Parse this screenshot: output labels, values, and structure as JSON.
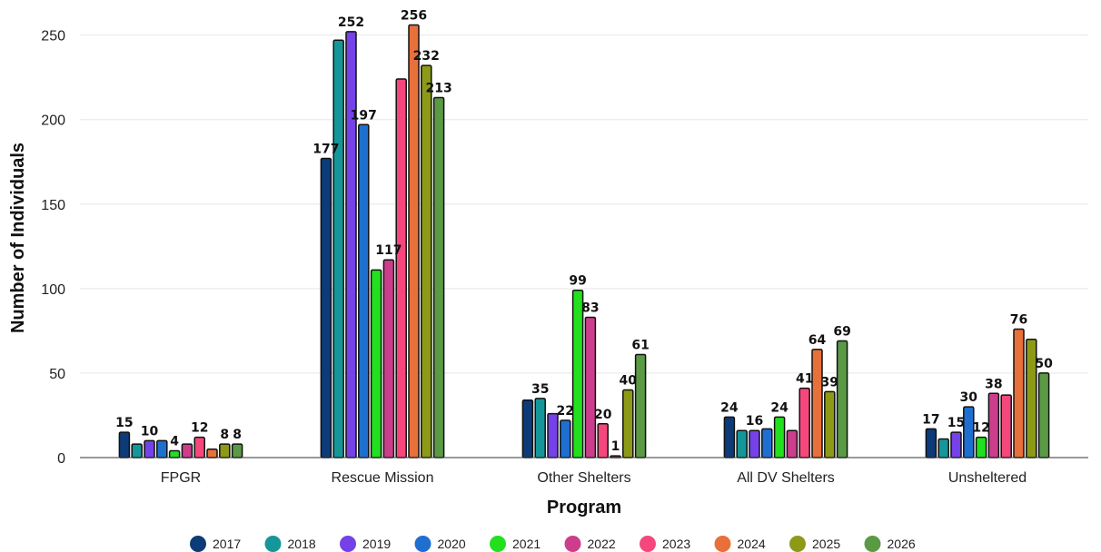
{
  "chart_data": {
    "type": "bar",
    "xlabel": "Program",
    "ylabel": "Number of Individuals",
    "ylim": [
      0,
      260
    ],
    "yticks": [
      0,
      50,
      100,
      150,
      200,
      250
    ],
    "grid": true,
    "legend_position": "bottom",
    "categories": [
      "FPGR",
      "Rescue Mission",
      "Other Shelters",
      "All DV Shelters",
      "Unsheltered"
    ],
    "series": [
      {
        "name": "2017",
        "color": "#0d3b78",
        "values": [
          15,
          177,
          34,
          24,
          17
        ],
        "labels": [
          "15",
          "177",
          "",
          "24",
          "17"
        ]
      },
      {
        "name": "2018",
        "color": "#15979a",
        "values": [
          8,
          247,
          35,
          16,
          11
        ],
        "labels": [
          "",
          "",
          "35",
          "",
          ""
        ]
      },
      {
        "name": "2019",
        "color": "#7442e8",
        "values": [
          10,
          252,
          26,
          16,
          15
        ],
        "labels": [
          "10",
          "252",
          "",
          "16",
          "15"
        ]
      },
      {
        "name": "2020",
        "color": "#1f6fd1",
        "values": [
          10,
          197,
          22,
          17,
          30
        ],
        "labels": [
          "",
          "197",
          "22",
          "",
          "30"
        ]
      },
      {
        "name": "2021",
        "color": "#22e01e",
        "values": [
          4,
          111,
          99,
          24,
          12
        ],
        "labels": [
          "4",
          "",
          "99",
          "24",
          "12"
        ]
      },
      {
        "name": "2022",
        "color": "#cc3e8c",
        "values": [
          8,
          117,
          83,
          16,
          38
        ],
        "labels": [
          "",
          "117",
          "83",
          "",
          "38"
        ]
      },
      {
        "name": "2023",
        "color": "#f5477c",
        "values": [
          12,
          224,
          20,
          41,
          37
        ],
        "labels": [
          "12",
          "",
          "20",
          "41",
          ""
        ]
      },
      {
        "name": "2024",
        "color": "#e8703a",
        "values": [
          5,
          256,
          1,
          64,
          76
        ],
        "labels": [
          "",
          "256",
          "1",
          "64",
          "76"
        ]
      },
      {
        "name": "2025",
        "color": "#8d9a17",
        "values": [
          8,
          232,
          40,
          39,
          70
        ],
        "labels": [
          "8",
          "232",
          "40",
          "39",
          ""
        ]
      },
      {
        "name": "2026",
        "color": "#5a9a45",
        "values": [
          8,
          213,
          61,
          69,
          50
        ],
        "labels": [
          "8",
          "213",
          "61",
          "69",
          "50"
        ]
      }
    ]
  }
}
